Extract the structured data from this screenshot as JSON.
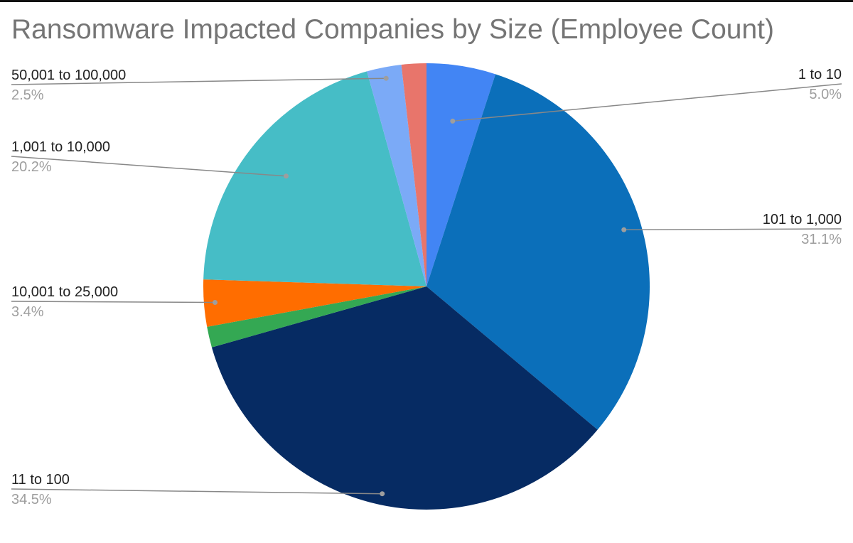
{
  "chart_data": {
    "type": "pie",
    "title": "Ransomware Impacted Companies by Size (Employee Count)",
    "slices": [
      {
        "label": "1 to 10",
        "value": 5.0,
        "pct_label": "5.0%",
        "color": "#4285f4"
      },
      {
        "label": "101 to 1,000",
        "value": 31.1,
        "pct_label": "31.1%",
        "color": "#0b6fba"
      },
      {
        "label": "11 to 100",
        "value": 34.5,
        "pct_label": "34.5%",
        "color": "#062b63"
      },
      {
        "label": "",
        "value": 1.5,
        "pct_label": "",
        "color": "#34a853"
      },
      {
        "label": "10,001 to 25,000",
        "value": 3.4,
        "pct_label": "3.4%",
        "color": "#ff6d00"
      },
      {
        "label": "1,001 to 10,000",
        "value": 20.2,
        "pct_label": "20.2%",
        "color": "#46bdc6"
      },
      {
        "label": "50,001 to 100,000",
        "value": 2.5,
        "pct_label": "2.5%",
        "color": "#7baaf7"
      },
      {
        "label": "",
        "value": 1.8,
        "pct_label": "",
        "color": "#e8756b"
      }
    ],
    "start_angle_deg": 0,
    "direction": "clockwise",
    "legend": "none",
    "label_style": "callout lines with category name and percentage"
  }
}
